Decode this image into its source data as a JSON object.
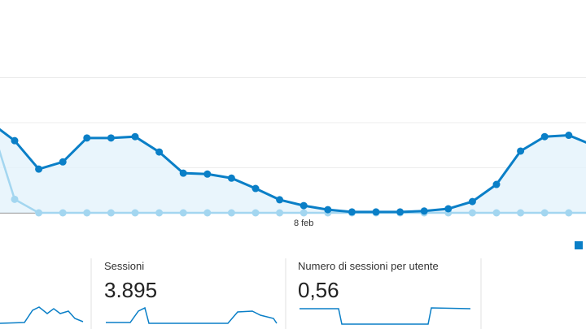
{
  "chart_data": {
    "type": "line",
    "categories": [
      null,
      null,
      null,
      null,
      null,
      null,
      null,
      null,
      null,
      null,
      null,
      null,
      null,
      "8 feb",
      null,
      null,
      null,
      null,
      null,
      null,
      null,
      null,
      null,
      null,
      null,
      null
    ],
    "series": [
      {
        "color": "#0a7fc7",
        "values": [
          2.0,
          1.6,
          0.97,
          1.13,
          1.66,
          1.66,
          1.69,
          1.35,
          0.88,
          0.86,
          0.77,
          0.54,
          0.29,
          0.16,
          0.07,
          0.02,
          0.02,
          0.02,
          0.04,
          0.09,
          0.25,
          0.63,
          1.37,
          1.69,
          1.72,
          1.5
        ]
      },
      {
        "color": "#a3d6f0",
        "values": [
          2.0,
          0.3,
          0,
          0,
          0,
          0,
          0,
          0,
          0,
          0,
          0,
          0,
          0,
          0,
          0,
          0,
          0,
          0,
          0,
          0,
          0,
          0,
          0,
          0,
          0,
          0
        ]
      }
    ],
    "ylim": [
      0,
      4.72
    ],
    "yticks": [
      1,
      2,
      3
    ],
    "grid": true
  },
  "cards": [
    {
      "title": "Sessioni",
      "value": "3.895"
    },
    {
      "title": "Numero di sessioni per utente",
      "value": "0,56"
    }
  ]
}
